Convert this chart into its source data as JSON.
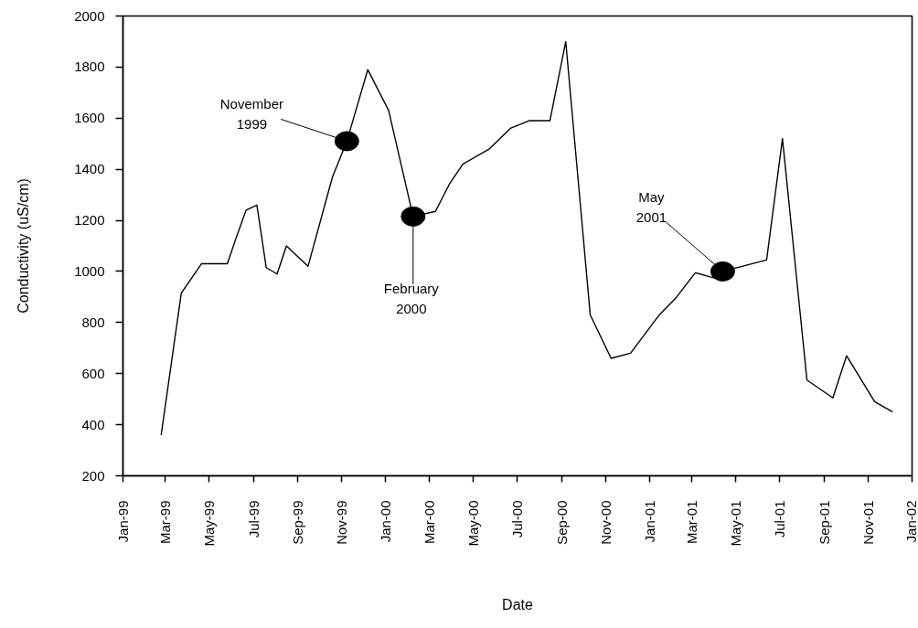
{
  "chart_data": {
    "type": "line",
    "xlabel": "Date",
    "ylabel": "Conductivity (uS/cm)",
    "grid": false,
    "line_style": "solid",
    "xlim": [
      "1999-01-01",
      "2002-01-01"
    ],
    "ylim": [
      200,
      2000
    ],
    "xticks": [
      {
        "value": "1999-01",
        "label": "Jan-99"
      },
      {
        "value": "1999-03",
        "label": "Mar-99"
      },
      {
        "value": "1999-05",
        "label": "May-99"
      },
      {
        "value": "1999-07",
        "label": "Jul-99"
      },
      {
        "value": "1999-09",
        "label": "Sep-99"
      },
      {
        "value": "1999-11",
        "label": "Nov-99"
      },
      {
        "value": "2000-01",
        "label": "Jan-00"
      },
      {
        "value": "2000-03",
        "label": "Mar-00"
      },
      {
        "value": "2000-05",
        "label": "May-00"
      },
      {
        "value": "2000-07",
        "label": "Jul-00"
      },
      {
        "value": "2000-09",
        "label": "Sep-00"
      },
      {
        "value": "2000-11",
        "label": "Nov-00"
      },
      {
        "value": "2001-01",
        "label": "Jan-01"
      },
      {
        "value": "2001-03",
        "label": "Mar-01"
      },
      {
        "value": "2001-05",
        "label": "May-01"
      },
      {
        "value": "2001-07",
        "label": "Jul-01"
      },
      {
        "value": "2001-09",
        "label": "Sep-01"
      },
      {
        "value": "2001-11",
        "label": "Nov-01"
      },
      {
        "value": "2002-01",
        "label": "Jan-02"
      }
    ],
    "yticks": [
      200,
      400,
      600,
      800,
      1000,
      1200,
      1400,
      1600,
      1800,
      2000
    ],
    "series": [
      {
        "color": "#000000",
        "x": [
          "1999-02-23",
          "1999-03-23",
          "1999-04-20",
          "1999-05-26",
          "1999-06-07",
          "1999-06-21",
          "1999-07-06",
          "1999-07-19",
          "1999-08-03",
          "1999-08-16",
          "1999-09-15",
          "1999-10-19",
          "1999-11-08",
          "1999-12-07",
          "2000-01-05",
          "2000-02-08",
          "2000-03-10",
          "2000-03-30",
          "2000-04-17",
          "2000-05-24",
          "2000-06-22",
          "2000-07-18",
          "2000-08-16",
          "2000-09-07",
          "2000-10-11",
          "2000-11-09",
          "2000-12-06",
          "2001-01-15",
          "2001-02-08",
          "2001-03-06",
          "2001-03-31",
          "2001-04-13",
          "2001-06-13",
          "2001-07-05",
          "2001-08-08",
          "2001-09-13",
          "2001-10-02",
          "2001-11-10",
          "2001-12-05"
        ],
        "values": [
          360,
          915,
          1030,
          1030,
          1130,
          1240,
          1260,
          1015,
          990,
          1100,
          1020,
          1370,
          1510,
          1790,
          1630,
          1215,
          1235,
          1345,
          1420,
          1480,
          1560,
          1590,
          1590,
          1900,
          830,
          660,
          680,
          830,
          900,
          995,
          975,
          1000,
          1045,
          1520,
          575,
          505,
          670,
          490,
          450
        ]
      },
      {
        "type": "scatter",
        "color": "#000000",
        "marker": "circle",
        "x": [
          "1999-11-08",
          "2000-02-08",
          "2001-04-13"
        ],
        "values": [
          1510,
          1215,
          1000
        ]
      }
    ],
    "annotations": [
      {
        "text": "November\n1999",
        "x": "1999-11-08",
        "y": 1510
      },
      {
        "text": "February\n2000",
        "x": "2000-02-08",
        "y": 1215
      },
      {
        "text": "May\n2001",
        "x": "2001-04-13",
        "y": 1000
      }
    ]
  }
}
